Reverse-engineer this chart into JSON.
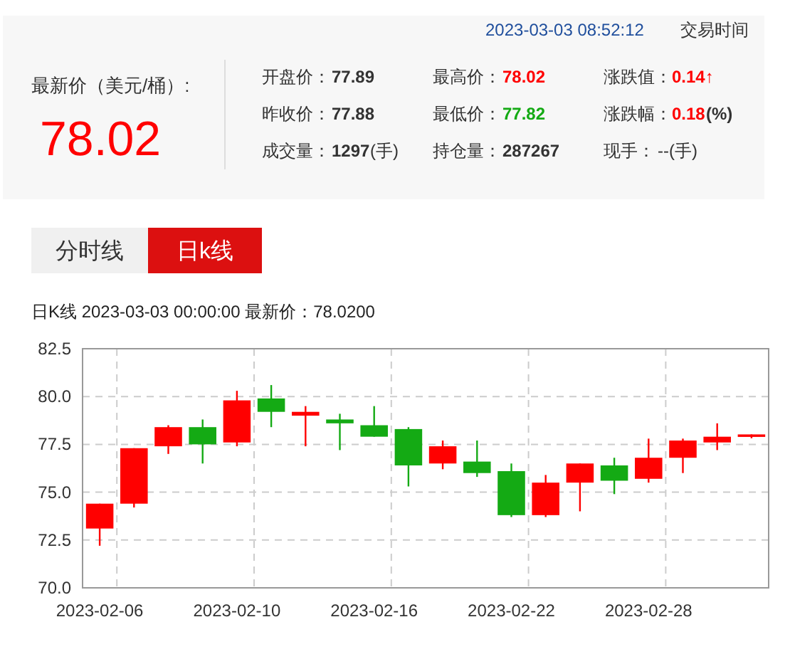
{
  "chart_data": {
    "type": "candlestick",
    "title": "日K线  2023-03-03 00:00:00  最新价：78.0200",
    "annotations": [
      "2023-03-03 08:52:12",
      "交易时间",
      "最新价（美元/桶）:",
      "78.02",
      "开盘价：",
      "77.89",
      "最高价：",
      "78.02",
      "涨跌值：",
      "0.14↑",
      "昨收价：",
      "77.88",
      "最低价：",
      "77.82",
      "涨跌幅：",
      "0.18",
      "(%)",
      "成交量：",
      "1297",
      "(手)",
      "持仓量：",
      "287267",
      "现手：",
      "--(手)",
      "分时线",
      "日k线"
    ],
    "categories": [
      "2023-02-06",
      null,
      null,
      null,
      "2023-02-10",
      null,
      null,
      null,
      "2023-02-16",
      null,
      null,
      null,
      "2023-02-22",
      null,
      null,
      null,
      "2023-02-28",
      null,
      null,
      null
    ],
    "ohlc": [
      [
        73.1,
        74.4,
        72.2,
        74.4
      ],
      [
        74.4,
        77.3,
        74.2,
        77.3
      ],
      [
        77.4,
        78.5,
        77.0,
        78.4
      ],
      [
        78.4,
        78.8,
        76.5,
        77.5
      ],
      [
        77.6,
        80.3,
        77.4,
        79.8
      ],
      [
        79.9,
        80.6,
        78.4,
        79.2
      ],
      [
        79.0,
        79.5,
        77.4,
        79.2
      ],
      [
        78.8,
        79.1,
        77.2,
        78.6
      ],
      [
        78.5,
        79.5,
        77.9,
        77.9
      ],
      [
        78.3,
        78.4,
        75.3,
        76.4
      ],
      [
        76.5,
        77.7,
        76.2,
        77.4
      ],
      [
        76.6,
        77.7,
        75.8,
        76.0
      ],
      [
        76.1,
        76.5,
        73.7,
        73.8
      ],
      [
        73.8,
        75.9,
        73.7,
        75.5
      ],
      [
        75.5,
        76.5,
        74.0,
        76.5
      ],
      [
        76.4,
        76.8,
        74.9,
        75.6
      ],
      [
        75.7,
        77.8,
        75.5,
        76.8
      ],
      [
        76.8,
        77.8,
        76.0,
        77.7
      ],
      [
        77.6,
        78.6,
        77.2,
        77.9
      ],
      [
        77.89,
        78.02,
        77.82,
        78.02
      ]
    ],
    "colors": [
      "#ff0000",
      "#ff0000",
      "#ff0000",
      "#14aa14",
      "#ff0000",
      "#14aa14",
      "#ff0000",
      "#14aa14",
      "#14aa14",
      "#14aa14",
      "#ff0000",
      "#14aa14",
      "#14aa14",
      "#ff0000",
      "#ff0000",
      "#14aa14",
      "#ff0000",
      "#ff0000",
      "#ff0000",
      "#ff0000"
    ],
    "ylim": [
      70,
      82.5
    ],
    "yticks": [
      {
        "value": 70,
        "label": "70.0"
      },
      {
        "value": 72.5,
        "label": "72.5"
      },
      {
        "value": 75,
        "label": "75.0"
      },
      {
        "value": 77.5,
        "label": "77.5"
      },
      {
        "value": 80,
        "label": "80.0"
      },
      {
        "value": 82.5,
        "label": "82.5"
      }
    ],
    "grid": true
  }
}
